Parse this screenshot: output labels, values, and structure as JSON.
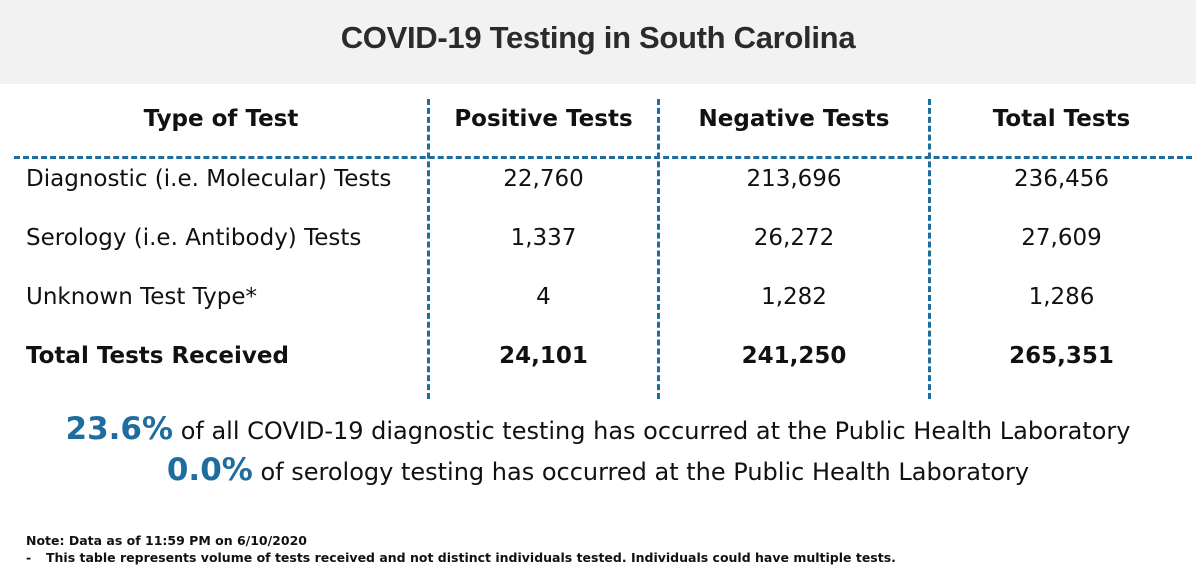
{
  "title": "COVID-19 Testing in South Carolina",
  "table": {
    "headers": [
      "Type of Test",
      "Positive Tests",
      "Negative Tests",
      "Total Tests"
    ],
    "rows": [
      [
        "Diagnostic (i.e. Molecular) Tests",
        "22,760",
        "213,696",
        "236,456"
      ],
      [
        "Serology (i.e. Antibody) Tests",
        "1,337",
        "26,272",
        "27,609"
      ],
      [
        "Unknown Test Type*",
        "4",
        "1,282",
        "1,286"
      ],
      [
        "Total Tests Received",
        "24,101",
        "241,250",
        "265,351"
      ]
    ]
  },
  "summary": [
    {
      "pct": "23.6%",
      "text": " of all COVID-19 diagnostic testing has occurred at the Public Health Laboratory"
    },
    {
      "pct": "0.0%",
      "text": " of serology testing has occurred at the Public Health Laboratory"
    }
  ],
  "notes": {
    "line1": "Note: Data as of 11:59 PM on 6/10/2020",
    "line2_dash": "-",
    "line2": "This table represents volume of tests received and not distinct individuals tested. Individuals could have multiple tests."
  },
  "colors": {
    "accent": "#1f6d9e",
    "header_bg": "#f2f2f2"
  }
}
